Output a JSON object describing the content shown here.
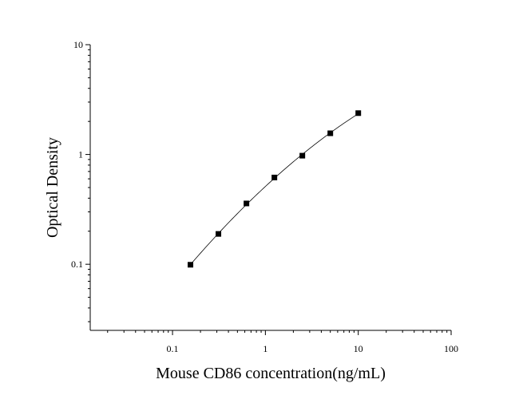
{
  "chart_data": {
    "type": "scatter",
    "title": "",
    "xlabel": "Mouse CD86 concentration(ng/mL)",
    "ylabel": "Optical Density",
    "xscale": "log",
    "yscale": "log",
    "xlim": [
      0.013,
      100
    ],
    "ylim": [
      0.025,
      10
    ],
    "x_ticks": [
      0.1,
      1,
      10,
      100
    ],
    "x_tick_labels": [
      "0.1",
      "1",
      "10",
      "100"
    ],
    "y_ticks": [
      0.1,
      1,
      10
    ],
    "y_tick_labels": [
      "0.1",
      "1",
      "10"
    ],
    "grid": false,
    "legend": "none",
    "marker": "square",
    "fit_line": true,
    "color": "#000000",
    "series": [
      {
        "x": [
          0.156,
          0.312,
          0.625,
          1.25,
          2.5,
          5,
          10
        ],
        "y": [
          0.099,
          0.189,
          0.358,
          0.617,
          0.975,
          1.56,
          2.38
        ]
      }
    ]
  }
}
